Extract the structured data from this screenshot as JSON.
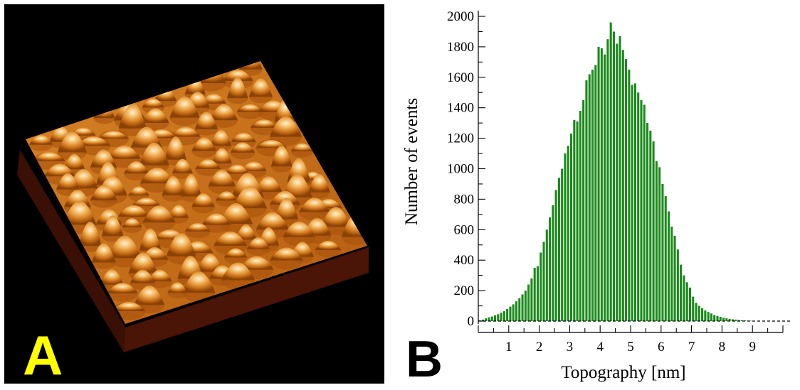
{
  "panel_a": {
    "letter": "A",
    "letter_color": "#ffff00",
    "background": "#000000"
  },
  "panel_b": {
    "letter": "B"
  },
  "chart_data": {
    "type": "bar",
    "xlabel": "Topography [nm]",
    "ylabel": "Number of events",
    "xlim": [
      0,
      10
    ],
    "ylim": [
      0,
      2000
    ],
    "x_ticks": [
      1,
      2,
      3,
      4,
      5,
      6,
      7,
      8,
      9
    ],
    "y_ticks": [
      0,
      200,
      400,
      600,
      800,
      1000,
      1200,
      1400,
      1600,
      1800,
      2000
    ],
    "bar_color": "#1a8a1a",
    "bin_width_nm": 0.1,
    "x": [
      0.1,
      0.2,
      0.3,
      0.4,
      0.5,
      0.6,
      0.7,
      0.8,
      0.9,
      1.0,
      1.1,
      1.2,
      1.3,
      1.4,
      1.5,
      1.6,
      1.7,
      1.8,
      1.9,
      2.0,
      2.1,
      2.2,
      2.3,
      2.4,
      2.5,
      2.6,
      2.7,
      2.8,
      2.9,
      3.0,
      3.1,
      3.2,
      3.3,
      3.4,
      3.5,
      3.6,
      3.7,
      3.8,
      3.9,
      4.0,
      4.1,
      4.2,
      4.3,
      4.4,
      4.5,
      4.6,
      4.7,
      4.8,
      4.9,
      5.0,
      5.1,
      5.2,
      5.3,
      5.4,
      5.5,
      5.6,
      5.7,
      5.8,
      5.9,
      6.0,
      6.1,
      6.2,
      6.3,
      6.4,
      6.5,
      6.6,
      6.7,
      6.8,
      6.9,
      7.0,
      7.1,
      7.2,
      7.3,
      7.4,
      7.5,
      7.6,
      7.7,
      7.8,
      7.9,
      8.0,
      8.1,
      8.2,
      8.3,
      8.4,
      8.5,
      8.6,
      8.7,
      8.8,
      8.9,
      9.0
    ],
    "values": [
      5,
      10,
      18,
      25,
      30,
      38,
      45,
      55,
      65,
      80,
      95,
      110,
      130,
      150,
      175,
      200,
      240,
      280,
      350,
      360,
      450,
      520,
      600,
      680,
      760,
      860,
      940,
      1000,
      1100,
      1150,
      1230,
      1320,
      1310,
      1380,
      1450,
      1580,
      1620,
      1650,
      1680,
      1800,
      1790,
      1750,
      1850,
      1960,
      1900,
      1820,
      1870,
      1780,
      1720,
      1650,
      1550,
      1560,
      1500,
      1450,
      1420,
      1300,
      1250,
      1180,
      1050,
      1010,
      900,
      820,
      720,
      620,
      560,
      470,
      370,
      300,
      255,
      220,
      160,
      120,
      100,
      85,
      70,
      60,
      50,
      40,
      34,
      28,
      22,
      18,
      15,
      12,
      10,
      8,
      6,
      4,
      3,
      2
    ]
  }
}
